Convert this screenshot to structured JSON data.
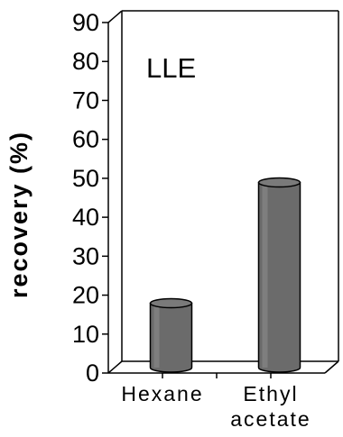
{
  "chart_data": {
    "type": "bar",
    "annotation": "LLE",
    "title": "",
    "ylabel": "recovery (%)",
    "xlabel": "",
    "ylim": [
      0,
      90
    ],
    "yticks": [
      0,
      10,
      20,
      30,
      40,
      50,
      60,
      70,
      80,
      90
    ],
    "categories": [
      [
        "Hexane"
      ],
      [
        "Ethyl",
        "acetate"
      ]
    ],
    "values": [
      17,
      48
    ],
    "grid": false,
    "bar_color": "#6b6b6b"
  }
}
